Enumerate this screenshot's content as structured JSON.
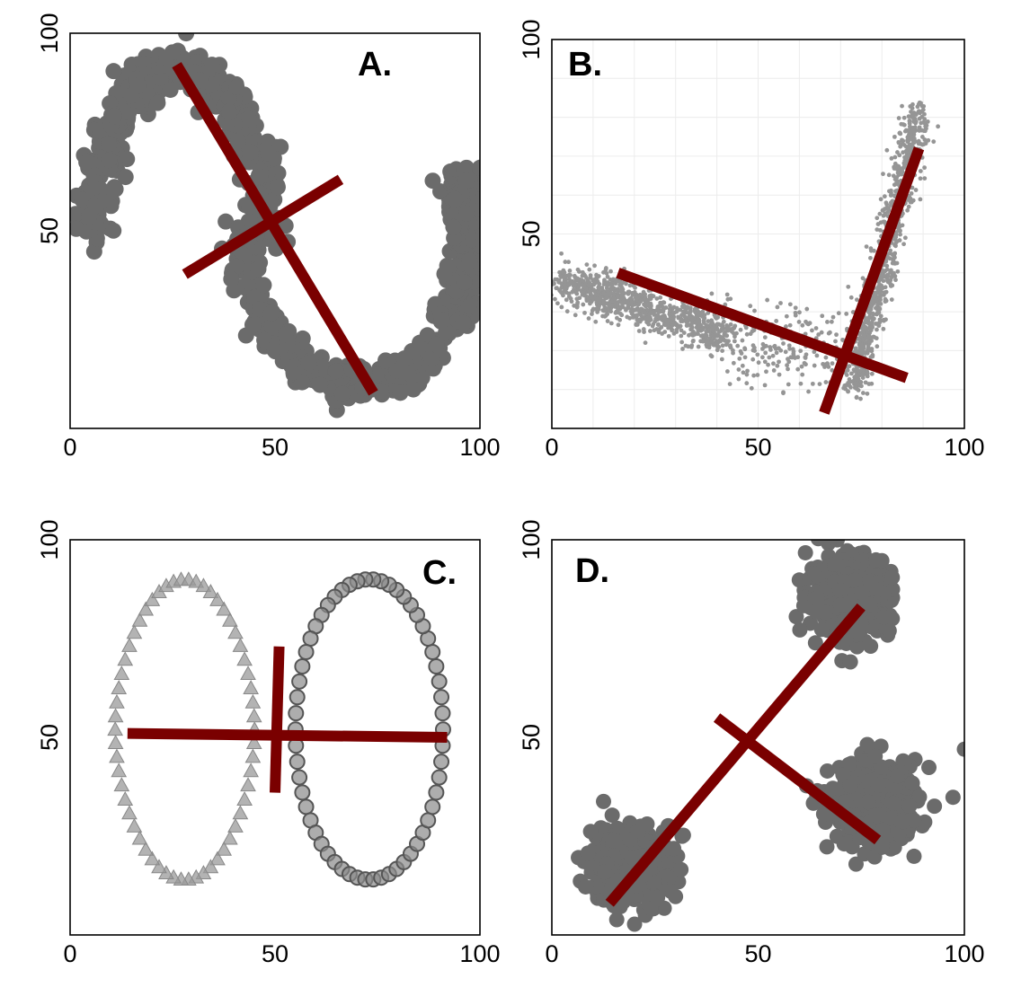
{
  "figure": {
    "colors": {
      "points": "#6b6b6b",
      "points_light": "#959595",
      "axes_line": "#7a0000",
      "frame": "#000000"
    }
  },
  "chart_data": [
    {
      "type": "scatter",
      "panel_label": "A.",
      "xlim": [
        0,
        100
      ],
      "ylim": [
        0,
        100
      ],
      "x_ticks": [
        "0",
        "50",
        "100"
      ],
      "y_ticks": [
        "50",
        "100"
      ],
      "grid": false,
      "shape": "two interleaved crescents",
      "axis_lines": [
        {
          "x": [
            26,
            74
          ],
          "y": [
            92,
            9
          ]
        },
        {
          "x": [
            28,
            66
          ],
          "y": [
            39,
            63
          ]
        }
      ]
    },
    {
      "type": "scatter",
      "panel_label": "B.",
      "xlim": [
        0,
        100
      ],
      "ylim": [
        0,
        100
      ],
      "x_ticks": [
        "0",
        "50",
        "100"
      ],
      "y_ticks": [
        "50",
        "100"
      ],
      "grid": true,
      "shape": "two elongated clusters meeting at a corner",
      "axis_lines": [
        {
          "x": [
            16,
            86
          ],
          "y": [
            40,
            13
          ]
        },
        {
          "x": [
            66,
            89
          ],
          "y": [
            4,
            72
          ]
        }
      ]
    },
    {
      "type": "scatter",
      "panel_label": "C.",
      "xlim": [
        0,
        100
      ],
      "ylim": [
        0,
        100
      ],
      "x_ticks": [
        "0",
        "50",
        "100"
      ],
      "y_ticks": [
        "50",
        "100"
      ],
      "grid": false,
      "shape": "two lobes (triangles on left, circles on right)",
      "axis_lines": [
        {
          "x": [
            14,
            92
          ],
          "y": [
            51,
            50
          ]
        },
        {
          "x": [
            51,
            50
          ],
          "y": [
            73,
            36
          ]
        }
      ]
    },
    {
      "type": "scatter",
      "panel_label": "D.",
      "xlim": [
        0,
        100
      ],
      "ylim": [
        0,
        100
      ],
      "x_ticks": [
        "0",
        "50",
        "100"
      ],
      "y_ticks": [
        "50",
        "100"
      ],
      "grid": false,
      "shape": "three blobs",
      "axis_lines": [
        {
          "x": [
            14,
            75
          ],
          "y": [
            8,
            83
          ]
        },
        {
          "x": [
            40,
            79
          ],
          "y": [
            55,
            24
          ]
        }
      ]
    }
  ]
}
